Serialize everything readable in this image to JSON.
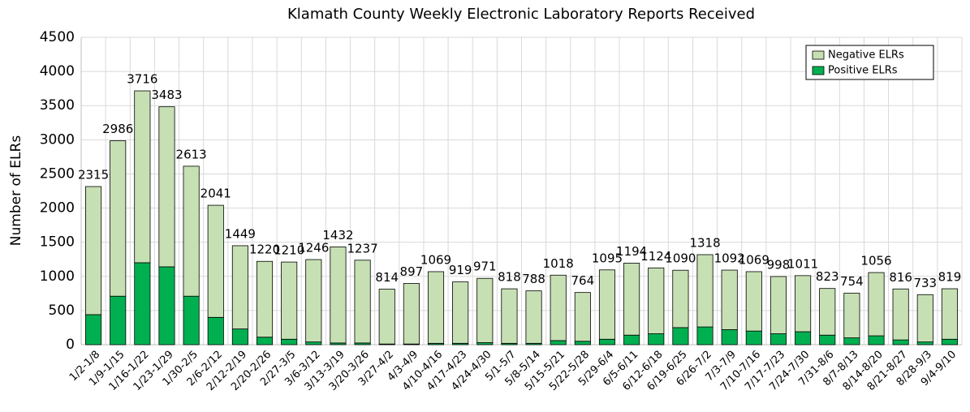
{
  "chart_data": {
    "type": "stacked_bar",
    "title": "Klamath County Weekly Electronic Laboratory Reports Received",
    "y_label": "Number of ELRs",
    "categories": [
      "1/2-1/8",
      "1/9-1/15",
      "1/16-1/22",
      "1/23-1/29",
      "1/30-2/5",
      "2/6-2/12",
      "2/12-2/19",
      "2/20-2/26",
      "2/27-3/5",
      "3/6-3/12",
      "3/13-3/19",
      "3/20-3/26",
      "3/27-4/2",
      "4/3-4/9",
      "4/10-4/16",
      "4/17-4/23",
      "4/24-4/30",
      "5/1-5/7",
      "5/8-5/14",
      "5/15-5/21",
      "5/22-5/28",
      "5/29-6/4",
      "6/5-6/11",
      "6/12-6/18",
      "6/19-6/25",
      "6/26-7/2",
      "7/3-7/9",
      "7/10-7/16",
      "7/17-7/23",
      "7/24-7/30",
      "7/31-8/6",
      "8/7-8/13",
      "8/14-8/20",
      "8/21-8/27",
      "8/28-9/3",
      "9/4-9/10"
    ],
    "series": [
      {
        "name": "Positive ELRs",
        "color": "#00b050",
        "values": [
          440,
          710,
          1200,
          1140,
          710,
          400,
          230,
          110,
          80,
          40,
          25,
          25,
          10,
          10,
          20,
          20,
          30,
          20,
          20,
          60,
          50,
          80,
          140,
          160,
          250,
          260,
          220,
          200,
          160,
          190,
          140,
          100,
          130,
          70,
          40,
          80
        ]
      },
      {
        "name": "Negative ELRs",
        "color": "#c6e0b4",
        "values": [
          1875,
          2276,
          2516,
          2343,
          1903,
          1641,
          1219,
          1110,
          1130,
          1206,
          1407,
          1212,
          804,
          887,
          1049,
          899,
          941,
          798,
          768,
          958,
          714,
          1015,
          1054,
          964,
          840,
          1058,
          872,
          869,
          838,
          821,
          683,
          654,
          926,
          746,
          693,
          739
        ]
      }
    ],
    "totals": [
      2315,
      2986,
      3716,
      3483,
      2613,
      2041,
      1449,
      1220,
      1210,
      1246,
      1432,
      1237,
      814,
      897,
      1069,
      919,
      971,
      818,
      788,
      1018,
      764,
      1095,
      1194,
      1124,
      1090,
      1318,
      1092,
      1069,
      998,
      1011,
      823,
      754,
      1056,
      816,
      733,
      819
    ],
    "ylim": [
      0,
      4500
    ],
    "yticks": [
      0,
      500,
      1000,
      1500,
      2000,
      2500,
      3000,
      3500,
      4000,
      4500
    ],
    "grid": true,
    "legend": "upper right"
  }
}
